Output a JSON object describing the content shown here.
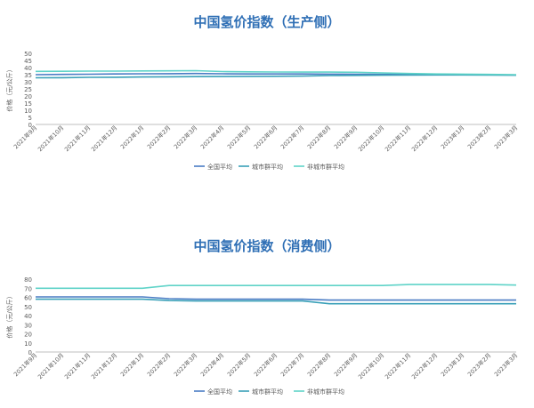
{
  "chart_data": [
    {
      "type": "line",
      "title": "中国氢价指数（生产侧）",
      "xlabel": "",
      "ylabel": "价格（元/公斤）",
      "ylim": [
        0,
        50
      ],
      "yticks": [
        0,
        5,
        10,
        15,
        20,
        25,
        30,
        35,
        40,
        45,
        50
      ],
      "grid": false,
      "legend_position": "bottom",
      "categories": [
        "2021年9月",
        "2021年10月",
        "2021年11月",
        "2021年12月",
        "2022年1月",
        "2022年2月",
        "2022年3月",
        "2022年4月",
        "2022年5月",
        "2022年6月",
        "2022年7月",
        "2022年8月",
        "2022年9月",
        "2022年10月",
        "2022年11月",
        "2022年12月",
        "2023年1月",
        "2023年2月",
        "2023年3月"
      ],
      "series": [
        {
          "name": "全国平均",
          "color": "#4a7cc4",
          "values": [
            35.0,
            35.2,
            35.3,
            35.5,
            35.6,
            35.7,
            35.8,
            35.6,
            35.5,
            35.5,
            35.5,
            35.4,
            35.3,
            35.2,
            35.1,
            35.0,
            35.0,
            34.9,
            34.8
          ]
        },
        {
          "name": "城市群平均",
          "color": "#3aa0b8",
          "values": [
            32.8,
            32.9,
            33.1,
            33.2,
            33.4,
            33.5,
            33.6,
            33.7,
            33.8,
            33.9,
            34.0,
            34.4,
            34.5,
            34.6,
            34.7,
            34.8,
            34.8,
            34.7,
            34.6
          ]
        },
        {
          "name": "非城市群平均",
          "color": "#5fd3c8",
          "values": [
            37.3,
            37.4,
            37.5,
            37.5,
            37.6,
            37.7,
            37.8,
            37.2,
            37.0,
            36.9,
            36.8,
            36.8,
            36.7,
            36.2,
            35.8,
            35.5,
            35.4,
            35.2,
            35.0
          ]
        }
      ]
    },
    {
      "type": "line",
      "title": "中国氢价指数（消费侧）",
      "xlabel": "",
      "ylabel": "价格（元/公斤）",
      "ylim": [
        0,
        80
      ],
      "yticks": [
        0,
        10,
        20,
        30,
        40,
        50,
        60,
        70,
        80
      ],
      "grid": false,
      "legend_position": "bottom",
      "categories": [
        "2021年9月",
        "2021年10月",
        "2021年11月",
        "2021年12月",
        "2022年1月",
        "2022年2月",
        "2022年3月",
        "2022年4月",
        "2022年5月",
        "2022年6月",
        "2022年7月",
        "2022年8月",
        "2022年9月",
        "2022年10月",
        "2022年11月",
        "2022年12月",
        "2023年1月",
        "2023年2月",
        "2023年3月"
      ],
      "series": [
        {
          "name": "全国平均",
          "color": "#4a7cc4",
          "values": [
            60.5,
            60.5,
            60.5,
            60.5,
            60.5,
            58.5,
            58.0,
            58.0,
            58.0,
            58.0,
            58.0,
            57.0,
            57.0,
            57.0,
            57.0,
            57.0,
            57.0,
            57.0,
            57.0
          ]
        },
        {
          "name": "城市群平均",
          "color": "#3aa0b8",
          "values": [
            58.0,
            58.0,
            58.0,
            58.0,
            58.0,
            56.5,
            56.0,
            56.0,
            56.0,
            56.0,
            56.0,
            53.0,
            53.0,
            53.0,
            53.0,
            53.0,
            53.0,
            53.0,
            53.0
          ]
        },
        {
          "name": "非城市群平均",
          "color": "#5fd3c8",
          "values": [
            70.0,
            70.0,
            70.0,
            70.0,
            70.0,
            73.0,
            73.0,
            73.0,
            73.0,
            73.0,
            73.0,
            73.0,
            73.0,
            73.0,
            74.0,
            74.0,
            74.0,
            74.0,
            73.5
          ]
        }
      ]
    }
  ]
}
